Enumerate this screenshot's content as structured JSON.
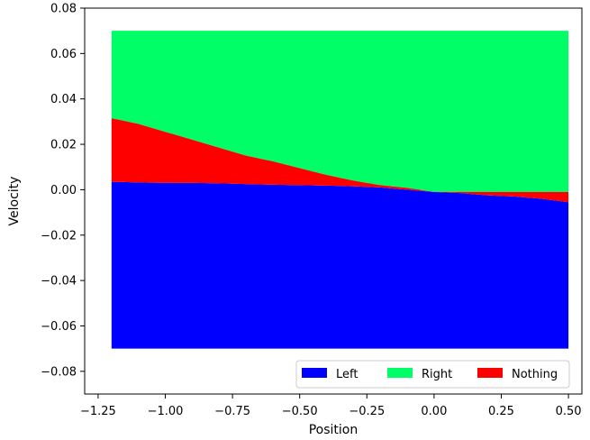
{
  "chart_data": {
    "type": "area",
    "xlabel": "Position",
    "ylabel": "Velocity",
    "xlim": [
      -1.3,
      0.55
    ],
    "ylim": [
      -0.09,
      0.08
    ],
    "xticks": [
      -1.25,
      -1.0,
      -0.75,
      -0.5,
      -0.25,
      0.0,
      0.25,
      0.5
    ],
    "xtick_labels": [
      "−1.25",
      "−1.00",
      "−0.75",
      "−0.50",
      "−0.25",
      "0.00",
      "0.25",
      "0.50"
    ],
    "yticks": [
      -0.08,
      -0.06,
      -0.04,
      -0.02,
      0.0,
      0.02,
      0.04,
      0.06,
      0.08
    ],
    "ytick_labels": [
      "−0.08",
      "−0.06",
      "−0.04",
      "−0.02",
      "0.00",
      "0.02",
      "0.04",
      "0.06",
      "0.08"
    ],
    "grid": false,
    "legend_position": "lower-right",
    "domain": {
      "x": [
        -1.2,
        0.5
      ],
      "y": [
        -0.07,
        0.07
      ]
    },
    "series": [
      {
        "name": "Left",
        "color": "#0000ff",
        "region": "below lower boundary",
        "lower_boundary": {
          "x": [
            -1.2,
            -1.1,
            -1.0,
            -0.9,
            -0.8,
            -0.7,
            -0.6,
            -0.5,
            -0.4,
            -0.3,
            -0.2,
            -0.1,
            0.0,
            0.1,
            0.2,
            0.3,
            0.4,
            0.5
          ],
          "y": [
            0.0035,
            0.0032,
            0.003,
            0.003,
            0.0028,
            0.0025,
            0.0022,
            0.002,
            0.0018,
            0.0015,
            0.001,
            0.0,
            -0.001,
            -0.0015,
            -0.0025,
            -0.003,
            -0.004,
            -0.0055
          ]
        }
      },
      {
        "name": "Right",
        "color": "#00ff66",
        "region": "above upper boundary",
        "upper_boundary": {
          "x": [
            -1.2,
            -1.1,
            -1.0,
            -0.9,
            -0.8,
            -0.7,
            -0.6,
            -0.5,
            -0.4,
            -0.3,
            -0.2,
            -0.1,
            0.0
          ],
          "y": [
            0.0315,
            0.029,
            0.0255,
            0.022,
            0.0185,
            0.015,
            0.0125,
            0.0095,
            0.0065,
            0.004,
            0.002,
            0.0008,
            -0.001
          ]
        }
      },
      {
        "name": "Nothing",
        "color": "#ff0000",
        "region": "between the two boundaries"
      }
    ],
    "legend": [
      "Left",
      "Right",
      "Nothing"
    ]
  }
}
